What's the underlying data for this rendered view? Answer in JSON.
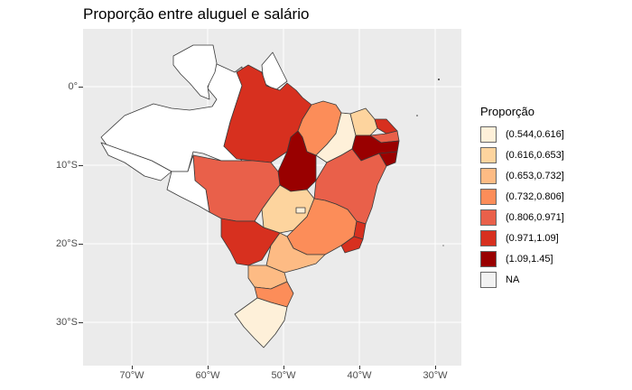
{
  "title": "Proporção entre aluguel e salário",
  "axis": {
    "y_ticks": [
      "0°",
      "10°S",
      "20°S",
      "30°S"
    ],
    "x_ticks": [
      "70°W",
      "60°W",
      "50°W",
      "40°W",
      "30°W"
    ]
  },
  "legend": {
    "title": "Proporção",
    "items": [
      {
        "label": "(0.544,0.616]",
        "color": "#fef0d9"
      },
      {
        "label": "(0.616,0.653]",
        "color": "#fdd49e"
      },
      {
        "label": "(0.653,0.732]",
        "color": "#fdbb84"
      },
      {
        "label": "(0.732,0.806]",
        "color": "#fc8d59"
      },
      {
        "label": "(0.806,0.971]",
        "color": "#e9604a"
      },
      {
        "label": "(0.971,1.09]",
        "color": "#d7301f"
      },
      {
        "label": "(1.09,1.45]",
        "color": "#990000"
      },
      {
        "label": "NA",
        "color": "#f2f2f2"
      }
    ]
  },
  "colors": {
    "panel": "#ebebeb",
    "grid": "#ffffff",
    "border": "#3a3a3a"
  }
}
